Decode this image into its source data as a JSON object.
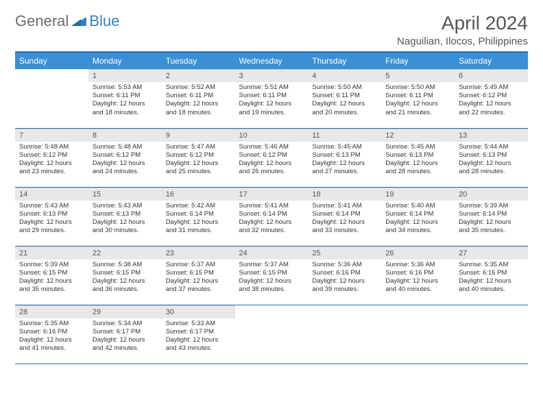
{
  "logo": {
    "general": "General",
    "blue": "Blue"
  },
  "title": "April 2024",
  "location": "Naguilian, Ilocos, Philippines",
  "colors": {
    "header_bg": "#3b8fd4",
    "header_border": "#2a6ca8",
    "daynum_bg": "#e8e8e8",
    "text": "#333333",
    "logo_blue": "#3b7fbf",
    "logo_gray": "#6b6b6b"
  },
  "weekdays": [
    "Sunday",
    "Monday",
    "Tuesday",
    "Wednesday",
    "Thursday",
    "Friday",
    "Saturday"
  ],
  "weeks": [
    [
      null,
      {
        "d": "1",
        "sr": "5:53 AM",
        "ss": "6:11 PM",
        "dl": "12 hours and 18 minutes."
      },
      {
        "d": "2",
        "sr": "5:52 AM",
        "ss": "6:11 PM",
        "dl": "12 hours and 18 minutes."
      },
      {
        "d": "3",
        "sr": "5:51 AM",
        "ss": "6:11 PM",
        "dl": "12 hours and 19 minutes."
      },
      {
        "d": "4",
        "sr": "5:50 AM",
        "ss": "6:11 PM",
        "dl": "12 hours and 20 minutes."
      },
      {
        "d": "5",
        "sr": "5:50 AM",
        "ss": "6:11 PM",
        "dl": "12 hours and 21 minutes."
      },
      {
        "d": "6",
        "sr": "5:49 AM",
        "ss": "6:12 PM",
        "dl": "12 hours and 22 minutes."
      }
    ],
    [
      {
        "d": "7",
        "sr": "5:48 AM",
        "ss": "6:12 PM",
        "dl": "12 hours and 23 minutes."
      },
      {
        "d": "8",
        "sr": "5:48 AM",
        "ss": "6:12 PM",
        "dl": "12 hours and 24 minutes."
      },
      {
        "d": "9",
        "sr": "5:47 AM",
        "ss": "6:12 PM",
        "dl": "12 hours and 25 minutes."
      },
      {
        "d": "10",
        "sr": "5:46 AM",
        "ss": "6:12 PM",
        "dl": "12 hours and 26 minutes."
      },
      {
        "d": "11",
        "sr": "5:45 AM",
        "ss": "6:13 PM",
        "dl": "12 hours and 27 minutes."
      },
      {
        "d": "12",
        "sr": "5:45 AM",
        "ss": "6:13 PM",
        "dl": "12 hours and 28 minutes."
      },
      {
        "d": "13",
        "sr": "5:44 AM",
        "ss": "6:13 PM",
        "dl": "12 hours and 28 minutes."
      }
    ],
    [
      {
        "d": "14",
        "sr": "5:43 AM",
        "ss": "6:13 PM",
        "dl": "12 hours and 29 minutes."
      },
      {
        "d": "15",
        "sr": "5:43 AM",
        "ss": "6:13 PM",
        "dl": "12 hours and 30 minutes."
      },
      {
        "d": "16",
        "sr": "5:42 AM",
        "ss": "6:14 PM",
        "dl": "12 hours and 31 minutes."
      },
      {
        "d": "17",
        "sr": "5:41 AM",
        "ss": "6:14 PM",
        "dl": "12 hours and 32 minutes."
      },
      {
        "d": "18",
        "sr": "5:41 AM",
        "ss": "6:14 PM",
        "dl": "12 hours and 33 minutes."
      },
      {
        "d": "19",
        "sr": "5:40 AM",
        "ss": "6:14 PM",
        "dl": "12 hours and 34 minutes."
      },
      {
        "d": "20",
        "sr": "5:39 AM",
        "ss": "6:14 PM",
        "dl": "12 hours and 35 minutes."
      }
    ],
    [
      {
        "d": "21",
        "sr": "5:39 AM",
        "ss": "6:15 PM",
        "dl": "12 hours and 35 minutes."
      },
      {
        "d": "22",
        "sr": "5:38 AM",
        "ss": "6:15 PM",
        "dl": "12 hours and 36 minutes."
      },
      {
        "d": "23",
        "sr": "5:37 AM",
        "ss": "6:15 PM",
        "dl": "12 hours and 37 minutes."
      },
      {
        "d": "24",
        "sr": "5:37 AM",
        "ss": "6:15 PM",
        "dl": "12 hours and 38 minutes."
      },
      {
        "d": "25",
        "sr": "5:36 AM",
        "ss": "6:16 PM",
        "dl": "12 hours and 39 minutes."
      },
      {
        "d": "26",
        "sr": "5:36 AM",
        "ss": "6:16 PM",
        "dl": "12 hours and 40 minutes."
      },
      {
        "d": "27",
        "sr": "5:35 AM",
        "ss": "6:16 PM",
        "dl": "12 hours and 40 minutes."
      }
    ],
    [
      {
        "d": "28",
        "sr": "5:35 AM",
        "ss": "6:16 PM",
        "dl": "12 hours and 41 minutes."
      },
      {
        "d": "29",
        "sr": "5:34 AM",
        "ss": "6:17 PM",
        "dl": "12 hours and 42 minutes."
      },
      {
        "d": "30",
        "sr": "5:33 AM",
        "ss": "6:17 PM",
        "dl": "12 hours and 43 minutes."
      },
      null,
      null,
      null,
      null
    ]
  ],
  "labels": {
    "sunrise": "Sunrise:",
    "sunset": "Sunset:",
    "daylight": "Daylight:"
  }
}
